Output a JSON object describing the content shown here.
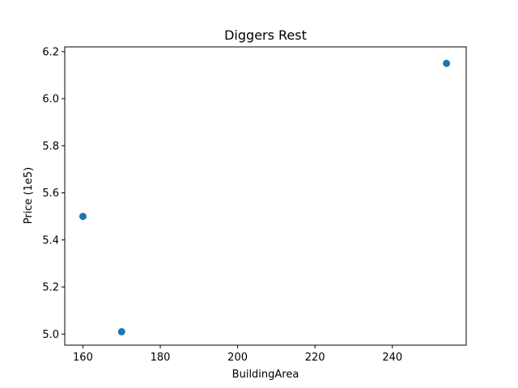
{
  "chart_data": {
    "type": "scatter",
    "title": "Diggers Rest",
    "xlabel": "BuildingArea",
    "ylabel": "Price (1e5)",
    "xlim": [
      155.3,
      259.1
    ],
    "ylim": [
      4.953,
      6.22
    ],
    "xticks": [
      160,
      180,
      200,
      220,
      240
    ],
    "yticks": [
      5.0,
      5.2,
      5.4,
      5.6,
      5.8,
      6.0,
      6.2
    ],
    "grid": false,
    "points": [
      {
        "x": 160,
        "y": 5.5
      },
      {
        "x": 170,
        "y": 5.01
      },
      {
        "x": 254,
        "y": 6.15
      }
    ],
    "color": "#1f77b4"
  }
}
